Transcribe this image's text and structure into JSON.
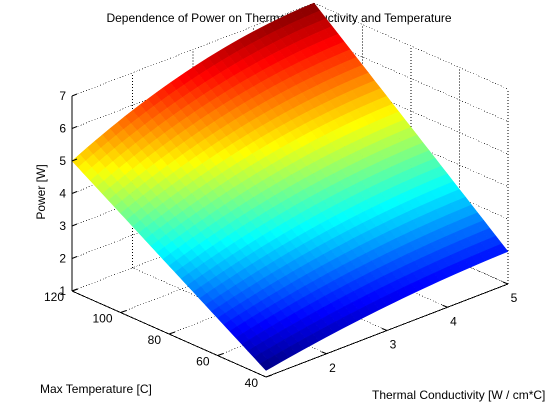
{
  "chart_data": {
    "type": "surface",
    "title": "Dependence of Power on Thermal Conductivity and Temperature",
    "xlabel": "Thermal Conductivity [W / cm*C]",
    "ylabel": "Max Temperature [C]",
    "zlabel": "Power [W]",
    "xlim": [
      1,
      5
    ],
    "ylim": [
      40,
      120
    ],
    "zlim": [
      1,
      7
    ],
    "x_ticks": [
      1,
      2,
      3,
      4,
      5
    ],
    "y_ticks": [
      40,
      60,
      80,
      100,
      120
    ],
    "z_ticks": [
      1,
      2,
      3,
      4,
      5,
      6,
      7
    ],
    "x_tick_labels_shown": [
      "2",
      "3",
      "4",
      "5"
    ],
    "y_tick_labels_shown": [
      "40",
      "60",
      "80",
      "100",
      "120"
    ],
    "z_tick_labels_shown": [
      "1",
      "2",
      "3",
      "4",
      "5",
      "6",
      "7"
    ],
    "colormap": "jet",
    "grid": true,
    "corners": [
      {
        "x": 1,
        "y": 120,
        "z": 5.0
      },
      {
        "x": 1,
        "y": 40,
        "z": 1.2
      },
      {
        "x": 5,
        "y": 40,
        "z": 2.0
      },
      {
        "x": 5,
        "y": 120,
        "z": 7.0
      }
    ],
    "samples": [
      {
        "x": 2,
        "y": 120,
        "z": 5.8
      },
      {
        "x": 3,
        "y": 120,
        "z": 6.4
      },
      {
        "x": 4,
        "y": 120,
        "z": 6.75
      },
      {
        "x": 1,
        "y": 80,
        "z": 3.2
      },
      {
        "x": 3,
        "y": 80,
        "z": 4.3
      },
      {
        "x": 5,
        "y": 80,
        "z": 4.5
      },
      {
        "x": 3,
        "y": 40,
        "z": 1.7
      }
    ]
  }
}
